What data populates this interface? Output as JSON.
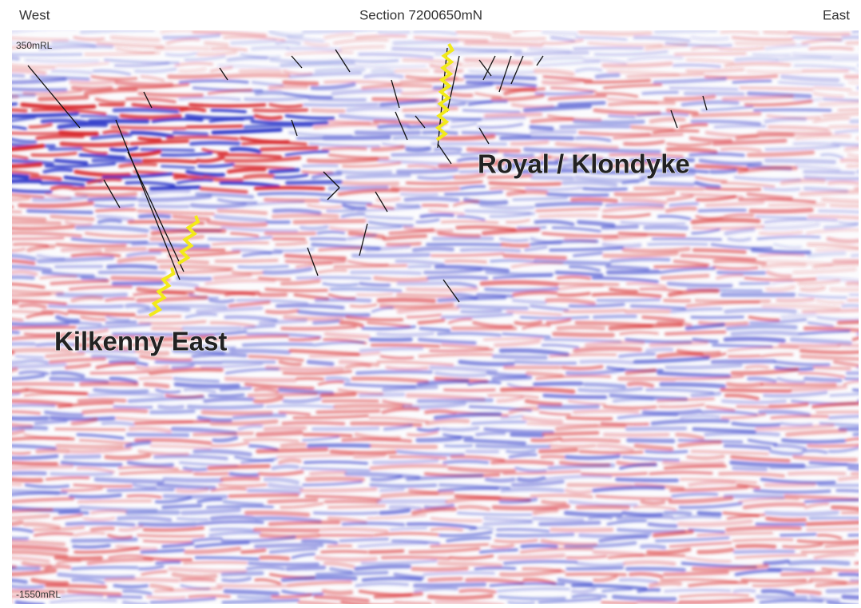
{
  "header": {
    "left": "West",
    "title": "Section 7200650mN",
    "right": "East"
  },
  "depth_labels": {
    "top": "350mRL",
    "bottom": "-1550mRL"
  },
  "annotations": [
    "Royal / Klondyke",
    "Kilkenny East"
  ]
}
